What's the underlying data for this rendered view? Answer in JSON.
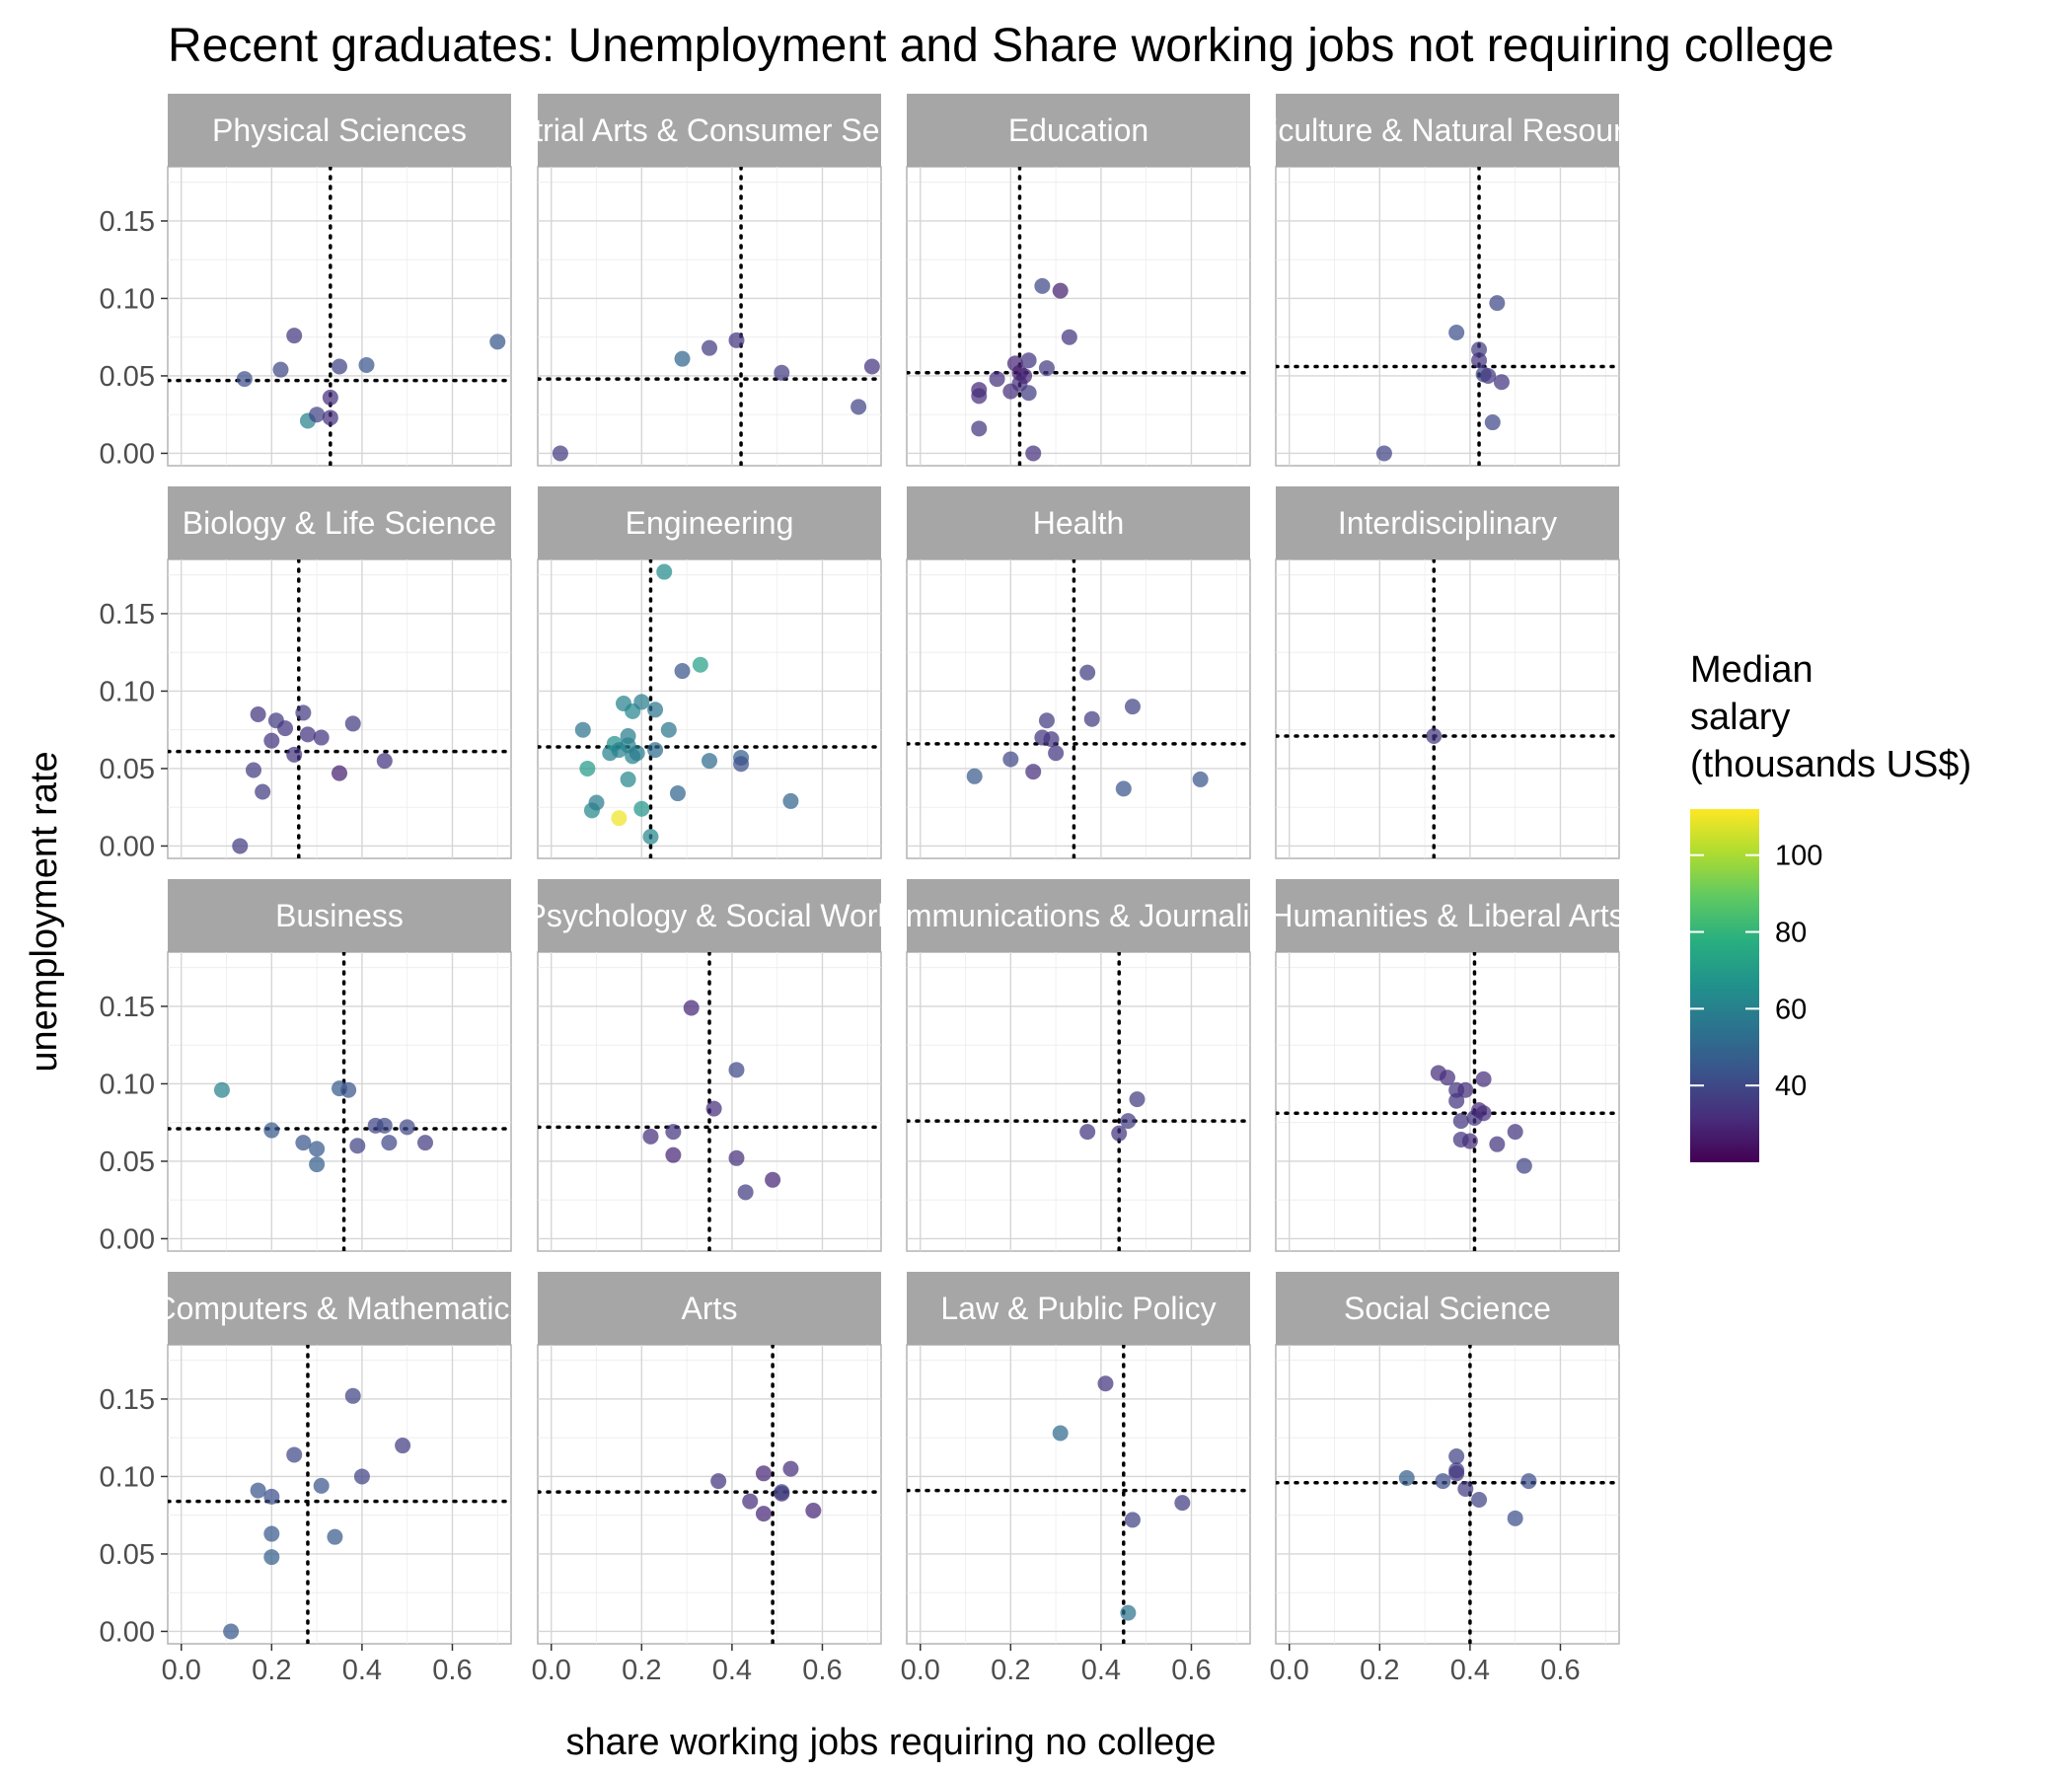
{
  "chart_data": {
    "type": "scatter",
    "title": "Recent graduates: Unemployment and Share working jobs not requiring college",
    "xlabel": "share working jobs requiring no college",
    "ylabel": "unemployment rate",
    "xlim": [
      -0.03,
      0.73
    ],
    "ylim": [
      -0.008,
      0.185
    ],
    "x_ticks": [
      "0.0",
      "0.2",
      "0.4",
      "0.6"
    ],
    "x_tick_values": [
      0,
      0.2,
      0.4,
      0.6
    ],
    "y_ticks": [
      "0.00",
      "0.05",
      "0.10",
      "0.15"
    ],
    "y_tick_values": [
      0,
      0.05,
      0.1,
      0.15
    ],
    "grid": true,
    "facet_layout": {
      "rows": 4,
      "cols": 4
    },
    "legend": {
      "title_lines": [
        "Median",
        "salary",
        "(thousands US$)"
      ],
      "position": "right",
      "ticks": [
        "40",
        "60",
        "80",
        "100"
      ],
      "tick_values": [
        40,
        60,
        80,
        100
      ],
      "range": [
        20,
        112
      ],
      "palette": "viridis"
    },
    "panels": [
      {
        "name": "Physical Sciences",
        "ref_x": 0.33,
        "ref_y": 0.047,
        "points": [
          {
            "x": 0.14,
            "y": 0.048,
            "salary": 42
          },
          {
            "x": 0.22,
            "y": 0.054,
            "salary": 40
          },
          {
            "x": 0.25,
            "y": 0.076,
            "salary": 35
          },
          {
            "x": 0.28,
            "y": 0.021,
            "salary": 60
          },
          {
            "x": 0.3,
            "y": 0.025,
            "salary": 38
          },
          {
            "x": 0.33,
            "y": 0.036,
            "salary": 32
          },
          {
            "x": 0.33,
            "y": 0.023,
            "salary": 33
          },
          {
            "x": 0.35,
            "y": 0.056,
            "salary": 38
          },
          {
            "x": 0.41,
            "y": 0.057,
            "salary": 44
          },
          {
            "x": 0.7,
            "y": 0.072,
            "salary": 45
          }
        ]
      },
      {
        "name": "Industrial Arts & Consumer Services",
        "ref_x": 0.42,
        "ref_y": 0.048,
        "points": [
          {
            "x": 0.02,
            "y": 0.0,
            "salary": 36
          },
          {
            "x": 0.29,
            "y": 0.061,
            "salary": 50
          },
          {
            "x": 0.35,
            "y": 0.068,
            "salary": 36
          },
          {
            "x": 0.41,
            "y": 0.073,
            "salary": 34
          },
          {
            "x": 0.51,
            "y": 0.052,
            "salary": 36
          },
          {
            "x": 0.68,
            "y": 0.03,
            "salary": 38
          },
          {
            "x": 0.71,
            "y": 0.056,
            "salary": 34
          }
        ]
      },
      {
        "name": "Education",
        "ref_x": 0.22,
        "ref_y": 0.052,
        "points": [
          {
            "x": 0.13,
            "y": 0.041,
            "salary": 30
          },
          {
            "x": 0.13,
            "y": 0.037,
            "salary": 32
          },
          {
            "x": 0.13,
            "y": 0.016,
            "salary": 35
          },
          {
            "x": 0.17,
            "y": 0.048,
            "salary": 33
          },
          {
            "x": 0.2,
            "y": 0.04,
            "salary": 32
          },
          {
            "x": 0.21,
            "y": 0.058,
            "salary": 30
          },
          {
            "x": 0.22,
            "y": 0.052,
            "salary": 28
          },
          {
            "x": 0.22,
            "y": 0.045,
            "salary": 32
          },
          {
            "x": 0.23,
            "y": 0.05,
            "salary": 30
          },
          {
            "x": 0.24,
            "y": 0.06,
            "salary": 34
          },
          {
            "x": 0.24,
            "y": 0.039,
            "salary": 36
          },
          {
            "x": 0.25,
            "y": 0.0,
            "salary": 33
          },
          {
            "x": 0.27,
            "y": 0.108,
            "salary": 40
          },
          {
            "x": 0.28,
            "y": 0.055,
            "salary": 36
          },
          {
            "x": 0.31,
            "y": 0.105,
            "salary": 28
          },
          {
            "x": 0.33,
            "y": 0.075,
            "salary": 34
          }
        ]
      },
      {
        "name": "Agriculture & Natural Resources",
        "ref_x": 0.42,
        "ref_y": 0.056,
        "points": [
          {
            "x": 0.21,
            "y": 0.0,
            "salary": 38
          },
          {
            "x": 0.37,
            "y": 0.078,
            "salary": 42
          },
          {
            "x": 0.42,
            "y": 0.067,
            "salary": 36
          },
          {
            "x": 0.42,
            "y": 0.06,
            "salary": 34
          },
          {
            "x": 0.43,
            "y": 0.051,
            "salary": 40
          },
          {
            "x": 0.44,
            "y": 0.05,
            "salary": 35
          },
          {
            "x": 0.45,
            "y": 0.02,
            "salary": 40
          },
          {
            "x": 0.46,
            "y": 0.097,
            "salary": 40
          },
          {
            "x": 0.47,
            "y": 0.046,
            "salary": 34
          }
        ]
      },
      {
        "name": "Biology & Life Science",
        "ref_x": 0.26,
        "ref_y": 0.061,
        "points": [
          {
            "x": 0.13,
            "y": 0.0,
            "salary": 36
          },
          {
            "x": 0.16,
            "y": 0.049,
            "salary": 36
          },
          {
            "x": 0.17,
            "y": 0.085,
            "salary": 34
          },
          {
            "x": 0.18,
            "y": 0.035,
            "salary": 36
          },
          {
            "x": 0.2,
            "y": 0.068,
            "salary": 34
          },
          {
            "x": 0.21,
            "y": 0.081,
            "salary": 36
          },
          {
            "x": 0.23,
            "y": 0.076,
            "salary": 34
          },
          {
            "x": 0.25,
            "y": 0.059,
            "salary": 34
          },
          {
            "x": 0.27,
            "y": 0.086,
            "salary": 36
          },
          {
            "x": 0.28,
            "y": 0.072,
            "salary": 34
          },
          {
            "x": 0.31,
            "y": 0.07,
            "salary": 34
          },
          {
            "x": 0.35,
            "y": 0.047,
            "salary": 28
          },
          {
            "x": 0.38,
            "y": 0.079,
            "salary": 36
          },
          {
            "x": 0.45,
            "y": 0.055,
            "salary": 34
          }
        ]
      },
      {
        "name": "Engineering",
        "ref_x": 0.22,
        "ref_y": 0.064,
        "points": [
          {
            "x": 0.07,
            "y": 0.075,
            "salary": 55
          },
          {
            "x": 0.08,
            "y": 0.05,
            "salary": 70
          },
          {
            "x": 0.09,
            "y": 0.023,
            "salary": 62
          },
          {
            "x": 0.1,
            "y": 0.028,
            "salary": 58
          },
          {
            "x": 0.13,
            "y": 0.06,
            "salary": 60
          },
          {
            "x": 0.14,
            "y": 0.066,
            "salary": 66
          },
          {
            "x": 0.15,
            "y": 0.062,
            "salary": 60
          },
          {
            "x": 0.15,
            "y": 0.018,
            "salary": 110
          },
          {
            "x": 0.16,
            "y": 0.092,
            "salary": 60
          },
          {
            "x": 0.17,
            "y": 0.071,
            "salary": 58
          },
          {
            "x": 0.17,
            "y": 0.043,
            "salary": 62
          },
          {
            "x": 0.17,
            "y": 0.065,
            "salary": 60
          },
          {
            "x": 0.18,
            "y": 0.087,
            "salary": 62
          },
          {
            "x": 0.18,
            "y": 0.058,
            "salary": 60
          },
          {
            "x": 0.19,
            "y": 0.06,
            "salary": 58
          },
          {
            "x": 0.2,
            "y": 0.093,
            "salary": 58
          },
          {
            "x": 0.2,
            "y": 0.024,
            "salary": 68
          },
          {
            "x": 0.22,
            "y": 0.006,
            "salary": 62
          },
          {
            "x": 0.23,
            "y": 0.062,
            "salary": 52
          },
          {
            "x": 0.23,
            "y": 0.088,
            "salary": 56
          },
          {
            "x": 0.25,
            "y": 0.177,
            "salary": 64
          },
          {
            "x": 0.26,
            "y": 0.075,
            "salary": 56
          },
          {
            "x": 0.28,
            "y": 0.034,
            "salary": 50
          },
          {
            "x": 0.29,
            "y": 0.113,
            "salary": 44
          },
          {
            "x": 0.33,
            "y": 0.117,
            "salary": 72
          },
          {
            "x": 0.35,
            "y": 0.055,
            "salary": 52
          },
          {
            "x": 0.42,
            "y": 0.057,
            "salary": 48
          },
          {
            "x": 0.42,
            "y": 0.053,
            "salary": 42
          },
          {
            "x": 0.53,
            "y": 0.029,
            "salary": 50
          }
        ]
      },
      {
        "name": "Health",
        "ref_x": 0.34,
        "ref_y": 0.066,
        "points": [
          {
            "x": 0.12,
            "y": 0.045,
            "salary": 46
          },
          {
            "x": 0.2,
            "y": 0.056,
            "salary": 40
          },
          {
            "x": 0.25,
            "y": 0.048,
            "salary": 32
          },
          {
            "x": 0.27,
            "y": 0.07,
            "salary": 34
          },
          {
            "x": 0.28,
            "y": 0.081,
            "salary": 36
          },
          {
            "x": 0.29,
            "y": 0.069,
            "salary": 34
          },
          {
            "x": 0.3,
            "y": 0.06,
            "salary": 34
          },
          {
            "x": 0.37,
            "y": 0.112,
            "salary": 36
          },
          {
            "x": 0.38,
            "y": 0.082,
            "salary": 36
          },
          {
            "x": 0.45,
            "y": 0.037,
            "salary": 44
          },
          {
            "x": 0.47,
            "y": 0.09,
            "salary": 38
          },
          {
            "x": 0.62,
            "y": 0.043,
            "salary": 44
          }
        ]
      },
      {
        "name": "Interdisciplinary",
        "ref_x": 0.32,
        "ref_y": 0.071,
        "points": [
          {
            "x": 0.32,
            "y": 0.071,
            "salary": 35
          }
        ]
      },
      {
        "name": "Business",
        "ref_x": 0.36,
        "ref_y": 0.071,
        "points": [
          {
            "x": 0.09,
            "y": 0.096,
            "salary": 60
          },
          {
            "x": 0.2,
            "y": 0.07,
            "salary": 46
          },
          {
            "x": 0.27,
            "y": 0.062,
            "salary": 44
          },
          {
            "x": 0.3,
            "y": 0.058,
            "salary": 46
          },
          {
            "x": 0.3,
            "y": 0.048,
            "salary": 48
          },
          {
            "x": 0.35,
            "y": 0.097,
            "salary": 46
          },
          {
            "x": 0.37,
            "y": 0.096,
            "salary": 44
          },
          {
            "x": 0.39,
            "y": 0.06,
            "salary": 38
          },
          {
            "x": 0.43,
            "y": 0.073,
            "salary": 38
          },
          {
            "x": 0.45,
            "y": 0.073,
            "salary": 40
          },
          {
            "x": 0.46,
            "y": 0.062,
            "salary": 40
          },
          {
            "x": 0.5,
            "y": 0.072,
            "salary": 40
          },
          {
            "x": 0.54,
            "y": 0.062,
            "salary": 36
          }
        ]
      },
      {
        "name": "Psychology & Social Work",
        "ref_x": 0.35,
        "ref_y": 0.072,
        "points": [
          {
            "x": 0.22,
            "y": 0.066,
            "salary": 32
          },
          {
            "x": 0.27,
            "y": 0.069,
            "salary": 34
          },
          {
            "x": 0.27,
            "y": 0.054,
            "salary": 30
          },
          {
            "x": 0.31,
            "y": 0.149,
            "salary": 30
          },
          {
            "x": 0.36,
            "y": 0.084,
            "salary": 32
          },
          {
            "x": 0.41,
            "y": 0.109,
            "salary": 40
          },
          {
            "x": 0.41,
            "y": 0.052,
            "salary": 32
          },
          {
            "x": 0.43,
            "y": 0.03,
            "salary": 36
          },
          {
            "x": 0.49,
            "y": 0.038,
            "salary": 30
          }
        ]
      },
      {
        "name": "Communications & Journalism",
        "ref_x": 0.44,
        "ref_y": 0.076,
        "points": [
          {
            "x": 0.37,
            "y": 0.069,
            "salary": 34
          },
          {
            "x": 0.44,
            "y": 0.068,
            "salary": 34
          },
          {
            "x": 0.46,
            "y": 0.076,
            "salary": 36
          },
          {
            "x": 0.48,
            "y": 0.09,
            "salary": 36
          }
        ]
      },
      {
        "name": "Humanities & Liberal Arts",
        "ref_x": 0.41,
        "ref_y": 0.081,
        "points": [
          {
            "x": 0.33,
            "y": 0.107,
            "salary": 32
          },
          {
            "x": 0.35,
            "y": 0.104,
            "salary": 32
          },
          {
            "x": 0.37,
            "y": 0.096,
            "salary": 34
          },
          {
            "x": 0.37,
            "y": 0.089,
            "salary": 34
          },
          {
            "x": 0.38,
            "y": 0.076,
            "salary": 34
          },
          {
            "x": 0.38,
            "y": 0.064,
            "salary": 34
          },
          {
            "x": 0.39,
            "y": 0.096,
            "salary": 32
          },
          {
            "x": 0.4,
            "y": 0.063,
            "salary": 32
          },
          {
            "x": 0.41,
            "y": 0.078,
            "salary": 34
          },
          {
            "x": 0.42,
            "y": 0.083,
            "salary": 30
          },
          {
            "x": 0.43,
            "y": 0.081,
            "salary": 32
          },
          {
            "x": 0.43,
            "y": 0.103,
            "salary": 32
          },
          {
            "x": 0.46,
            "y": 0.061,
            "salary": 34
          },
          {
            "x": 0.5,
            "y": 0.069,
            "salary": 34
          },
          {
            "x": 0.52,
            "y": 0.047,
            "salary": 38
          }
        ]
      },
      {
        "name": "Computers & Mathematics",
        "ref_x": 0.28,
        "ref_y": 0.084,
        "points": [
          {
            "x": 0.11,
            "y": 0.0,
            "salary": 45
          },
          {
            "x": 0.17,
            "y": 0.091,
            "salary": 44
          },
          {
            "x": 0.2,
            "y": 0.087,
            "salary": 42
          },
          {
            "x": 0.2,
            "y": 0.063,
            "salary": 46
          },
          {
            "x": 0.2,
            "y": 0.048,
            "salary": 48
          },
          {
            "x": 0.25,
            "y": 0.114,
            "salary": 40
          },
          {
            "x": 0.31,
            "y": 0.094,
            "salary": 44
          },
          {
            "x": 0.34,
            "y": 0.061,
            "salary": 46
          },
          {
            "x": 0.38,
            "y": 0.152,
            "salary": 38
          },
          {
            "x": 0.4,
            "y": 0.1,
            "salary": 38
          },
          {
            "x": 0.49,
            "y": 0.12,
            "salary": 36
          }
        ]
      },
      {
        "name": "Arts",
        "ref_x": 0.49,
        "ref_y": 0.09,
        "points": [
          {
            "x": 0.37,
            "y": 0.097,
            "salary": 34
          },
          {
            "x": 0.44,
            "y": 0.084,
            "salary": 32
          },
          {
            "x": 0.47,
            "y": 0.076,
            "salary": 30
          },
          {
            "x": 0.47,
            "y": 0.102,
            "salary": 30
          },
          {
            "x": 0.51,
            "y": 0.089,
            "salary": 28
          },
          {
            "x": 0.51,
            "y": 0.09,
            "salary": 40
          },
          {
            "x": 0.53,
            "y": 0.105,
            "salary": 32
          },
          {
            "x": 0.58,
            "y": 0.078,
            "salary": 30
          }
        ]
      },
      {
        "name": "Law & Public Policy",
        "ref_x": 0.45,
        "ref_y": 0.091,
        "points": [
          {
            "x": 0.31,
            "y": 0.128,
            "salary": 52
          },
          {
            "x": 0.41,
            "y": 0.16,
            "salary": 34
          },
          {
            "x": 0.46,
            "y": 0.012,
            "salary": 55
          },
          {
            "x": 0.47,
            "y": 0.072,
            "salary": 38
          },
          {
            "x": 0.58,
            "y": 0.083,
            "salary": 36
          }
        ]
      },
      {
        "name": "Social Science",
        "ref_x": 0.4,
        "ref_y": 0.096,
        "points": [
          {
            "x": 0.26,
            "y": 0.099,
            "salary": 48
          },
          {
            "x": 0.34,
            "y": 0.097,
            "salary": 42
          },
          {
            "x": 0.37,
            "y": 0.113,
            "salary": 38
          },
          {
            "x": 0.37,
            "y": 0.102,
            "salary": 34
          },
          {
            "x": 0.37,
            "y": 0.104,
            "salary": 36
          },
          {
            "x": 0.39,
            "y": 0.092,
            "salary": 36
          },
          {
            "x": 0.42,
            "y": 0.085,
            "salary": 38
          },
          {
            "x": 0.5,
            "y": 0.073,
            "salary": 42
          },
          {
            "x": 0.53,
            "y": 0.097,
            "salary": 42
          }
        ]
      }
    ]
  }
}
